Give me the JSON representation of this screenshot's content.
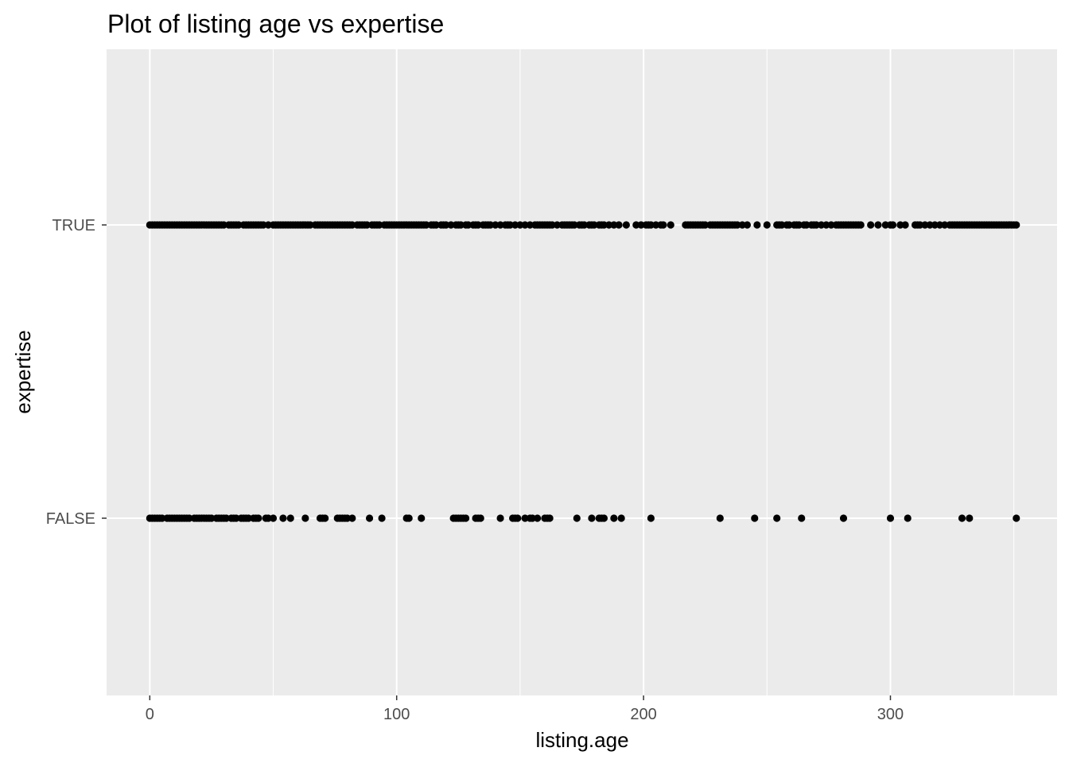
{
  "chart_data": {
    "type": "scatter",
    "title": "Plot of listing age vs expertise",
    "xlabel": "listing.age",
    "ylabel": "expertise",
    "xlim": [
      -17.5,
      367.5
    ],
    "x_ticks": [
      "0",
      "100",
      "200",
      "300"
    ],
    "y_categories": [
      "FALSE",
      "TRUE"
    ],
    "grid": true,
    "background_color": "#EBEBEB",
    "grid_color": "#FFFFFF",
    "point_color": "#000000",
    "series": [
      {
        "category": "TRUE",
        "x": [
          0,
          1,
          2,
          3,
          4,
          5,
          6,
          7,
          8,
          9,
          10,
          11,
          12,
          13,
          14,
          15,
          16,
          17,
          18,
          19,
          20,
          21,
          22,
          23,
          24,
          25,
          26,
          27,
          28,
          29,
          30,
          32,
          33,
          34,
          35,
          36,
          38,
          39,
          40,
          41,
          42,
          43,
          44,
          45,
          46,
          48,
          50,
          51,
          52,
          53,
          54,
          55,
          56,
          57,
          58,
          59,
          60,
          61,
          62,
          63,
          64,
          65,
          67,
          68,
          69,
          70,
          71,
          72,
          73,
          74,
          75,
          76,
          77,
          78,
          79,
          80,
          81,
          82,
          84,
          85,
          86,
          87,
          88,
          90,
          91,
          92,
          93,
          95,
          96,
          97,
          98,
          99,
          100,
          101,
          102,
          103,
          104,
          105,
          106,
          107,
          108,
          109,
          110,
          111,
          112,
          114,
          115,
          116,
          118,
          119,
          120,
          122,
          124,
          125,
          126,
          128,
          129,
          131,
          132,
          133,
          135,
          136,
          137,
          138,
          140,
          142,
          144,
          145,
          146,
          148,
          150,
          152,
          154,
          156,
          157,
          158,
          159,
          160,
          161,
          162,
          163,
          165,
          167,
          168,
          169,
          170,
          171,
          172,
          174,
          175,
          176,
          178,
          179,
          180,
          182,
          183,
          184,
          186,
          188,
          190,
          193,
          197,
          199,
          201,
          202,
          203,
          205,
          207,
          208,
          211,
          217,
          218,
          219,
          220,
          221,
          222,
          223,
          224,
          225,
          227,
          228,
          229,
          230,
          231,
          232,
          233,
          234,
          235,
          236,
          237,
          238,
          240,
          242,
          246,
          250,
          254,
          255,
          256,
          258,
          259,
          261,
          262,
          263,
          265,
          266,
          268,
          269,
          270,
          272,
          274,
          276,
          278,
          279,
          280,
          281,
          282,
          283,
          284,
          285,
          286,
          287,
          288,
          292,
          295,
          298,
          300,
          301,
          304,
          306,
          310,
          311,
          312,
          314,
          316,
          318,
          320,
          322,
          324,
          325,
          326,
          327,
          328,
          329,
          330,
          331,
          332,
          333,
          334,
          335,
          336,
          337,
          338,
          339,
          340,
          341,
          342,
          343,
          344,
          345,
          346,
          347,
          348,
          349,
          350,
          351
        ]
      },
      {
        "category": "FALSE",
        "x": [
          0,
          1,
          2,
          3,
          4,
          5,
          7,
          8,
          9,
          10,
          11,
          12,
          13,
          14,
          15,
          16,
          18,
          19,
          20,
          21,
          22,
          23,
          24,
          25,
          27,
          28,
          29,
          30,
          31,
          33,
          34,
          35,
          37,
          38,
          39,
          40,
          42,
          43,
          44,
          47,
          48,
          50,
          54,
          57,
          63,
          69,
          70,
          71,
          76,
          77,
          78,
          79,
          80,
          82,
          89,
          94,
          104,
          105,
          110,
          123,
          124,
          125,
          126,
          127,
          128,
          132,
          133,
          134,
          142,
          147,
          148,
          149,
          152,
          154,
          155,
          157,
          160,
          161,
          162,
          173,
          179,
          182,
          183,
          184,
          188,
          191,
          203,
          231,
          245,
          254,
          264,
          281,
          300,
          307,
          329,
          332,
          351
        ]
      }
    ]
  }
}
